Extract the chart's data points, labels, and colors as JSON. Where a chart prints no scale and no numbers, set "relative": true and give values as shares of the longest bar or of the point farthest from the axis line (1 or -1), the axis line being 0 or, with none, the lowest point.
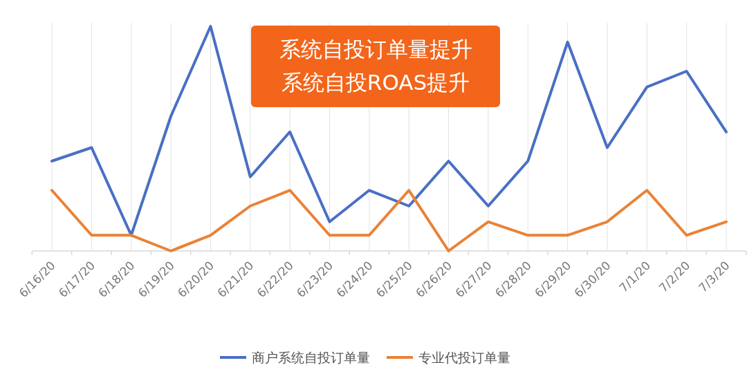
{
  "chart_data": {
    "type": "line",
    "relative": true,
    "grid": "x",
    "legend": "bottom",
    "categories": [
      "6/16/20",
      "6/17/20",
      "6/18/20",
      "6/19/20",
      "6/20/20",
      "6/21/20",
      "6/22/20",
      "6/23/20",
      "6/24/20",
      "6/25/20",
      "6/26/20",
      "6/27/20",
      "6/28/20",
      "6/29/20",
      "6/30/20",
      "7/1/20",
      "7/2/20",
      "7/3/20"
    ],
    "series": [
      {
        "name": "商户系统自投订单量",
        "color": "#4a6fc4",
        "values": [
          0.4,
          0.46,
          0.07,
          0.6,
          1,
          0.33,
          0.53,
          0.13,
          0.27,
          0.2,
          0.4,
          0.2,
          0.4,
          0.93,
          0.46,
          0.73,
          0.8,
          0.53
        ]
      },
      {
        "name": "专业代投订单量",
        "color": "#ea8236",
        "values": [
          0.27,
          0.07,
          0.07,
          0,
          0.07,
          0.2,
          0.27,
          0.07,
          0.07,
          0.27,
          0,
          0.13,
          0.07,
          0.07,
          0.13,
          0.27,
          0.07,
          0.13
        ]
      }
    ],
    "annotations": [
      "系统自投订单量提升",
      "系统自投ROAS提升"
    ]
  }
}
